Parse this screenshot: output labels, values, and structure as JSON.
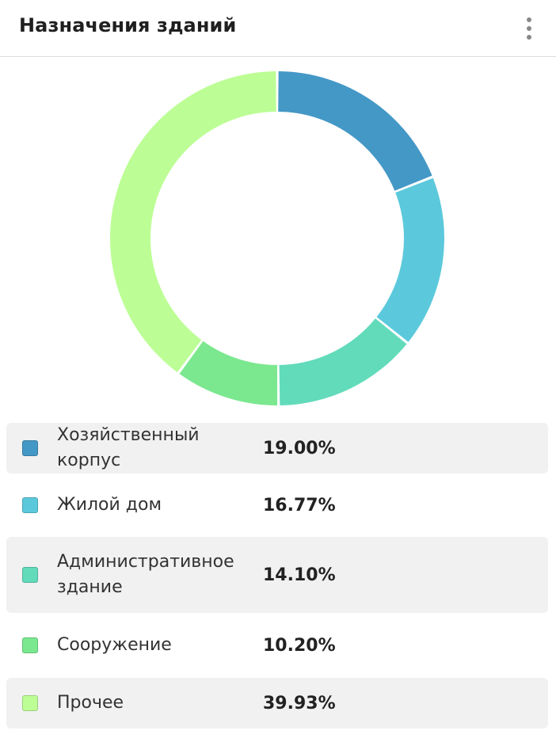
{
  "header": {
    "title": "Назначения зданий",
    "menu_icon": "more-vertical-icon"
  },
  "chart_data": {
    "type": "pie",
    "donut": true,
    "categories": [
      "Хозяйственный корпус",
      "Жилой дом",
      "Административное здание",
      "Сооружение",
      "Прочее"
    ],
    "values": [
      19.0,
      16.77,
      14.1,
      10.2,
      39.93
    ],
    "labels": [
      "19.00%",
      "16.77%",
      "14.10%",
      "10.20%",
      "39.93%"
    ],
    "colors": [
      "#4498c6",
      "#5bc9db",
      "#62dbbb",
      "#7be88f",
      "#bcfe95"
    ],
    "legend": "bottom"
  },
  "legend": {
    "items": [
      {
        "label": "Хозяйственный корпус",
        "value": "19.00%",
        "color": "#4498c6"
      },
      {
        "label": "Жилой дом",
        "value": "16.77%",
        "color": "#5bc9db"
      },
      {
        "label": "Административное здание",
        "value": "14.10%",
        "color": "#62dbbb"
      },
      {
        "label": "Сооружение",
        "value": "10.20%",
        "color": "#7be88f"
      },
      {
        "label": "Прочее",
        "value": "39.93%",
        "color": "#bcfe95"
      }
    ]
  }
}
